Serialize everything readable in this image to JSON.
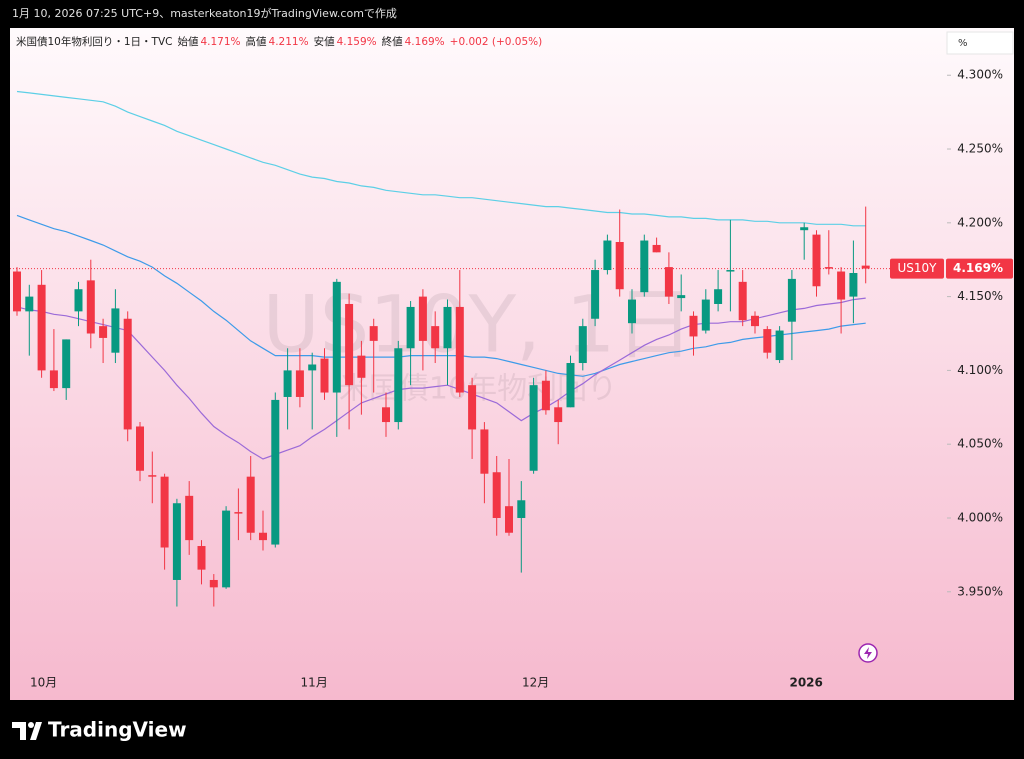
{
  "chart_data": {
    "type": "candlestick",
    "caption": "1月 10, 2026 07:25 UTC+9、masterkeaton19がTradingView.comで作成",
    "symbol_title": "米国債10年物利回り・1日・TVC",
    "ohlc_legend": [
      {
        "label": "始値",
        "text": "4.171%"
      },
      {
        "label": "高値",
        "text": "4.211%"
      },
      {
        "label": "安値",
        "text": "4.159%"
      },
      {
        "label": "終値",
        "text": "4.169%"
      }
    ],
    "change_text": "+0.002 (+0.05%)",
    "watermark": [
      "US10Y, 1日",
      "米国債10年物利回り"
    ],
    "axis_unit": "%",
    "brand": "TradingView",
    "categories": [
      null,
      null,
      "10月",
      null,
      null,
      null,
      null,
      null,
      null,
      null,
      null,
      null,
      null,
      null,
      null,
      null,
      null,
      null,
      null,
      null,
      null,
      null,
      null,
      null,
      "11月",
      null,
      null,
      null,
      null,
      null,
      null,
      null,
      null,
      null,
      null,
      null,
      null,
      null,
      null,
      null,
      null,
      null,
      "12月",
      null,
      null,
      null,
      null,
      null,
      null,
      null,
      null,
      null,
      null,
      null,
      null,
      null,
      null,
      null,
      null,
      null,
      null,
      null,
      null,
      null,
      "2026",
      null,
      null,
      null,
      null,
      null
    ],
    "open": [
      4.167,
      4.14,
      4.158,
      4.1,
      4.088,
      4.14,
      4.161,
      4.13,
      4.112,
      4.135,
      4.062,
      4.029,
      4.028,
      3.958,
      4.015,
      3.981,
      3.958,
      3.953,
      4.004,
      4.028,
      3.99,
      3.982,
      4.082,
      4.1,
      4.1,
      4.108,
      4.085,
      4.145,
      4.11,
      4.13,
      4.075,
      4.065,
      4.115,
      4.15,
      4.13,
      4.115,
      4.143,
      4.09,
      4.06,
      4.031,
      4.008,
      4.0,
      4.032,
      4.093,
      4.075,
      4.075,
      4.105,
      4.135,
      4.168,
      4.187,
      4.132,
      4.153,
      4.185,
      4.17,
      4.149,
      4.137,
      4.127,
      4.145,
      4.167,
      4.16,
      4.137,
      4.128,
      4.107,
      4.133,
      4.195,
      4.192,
      4.17,
      4.167,
      4.15,
      4.171
    ],
    "high": [
      4.17,
      4.158,
      4.168,
      4.128,
      4.121,
      4.16,
      4.175,
      4.135,
      4.155,
      4.14,
      4.065,
      4.045,
      4.03,
      4.013,
      4.025,
      3.985,
      3.962,
      4.008,
      4.02,
      4.042,
      4.005,
      4.085,
      4.115,
      4.115,
      4.112,
      4.115,
      4.162,
      4.152,
      4.12,
      4.135,
      4.085,
      4.12,
      4.147,
      4.155,
      4.14,
      4.148,
      4.168,
      4.095,
      4.065,
      4.042,
      4.04,
      4.025,
      4.095,
      4.1,
      4.08,
      4.11,
      4.135,
      4.175,
      4.192,
      4.209,
      4.155,
      4.192,
      4.19,
      4.18,
      4.165,
      4.14,
      4.155,
      4.168,
      4.202,
      4.168,
      4.14,
      4.13,
      4.13,
      4.168,
      4.2,
      4.195,
      4.195,
      4.17,
      4.188,
      4.211
    ],
    "low": [
      4.137,
      4.11,
      4.095,
      4.086,
      4.08,
      4.13,
      4.115,
      4.105,
      4.105,
      4.052,
      4.025,
      4.01,
      3.965,
      3.94,
      3.975,
      3.955,
      3.94,
      3.952,
      3.985,
      3.985,
      3.978,
      3.98,
      4.06,
      4.075,
      4.06,
      4.08,
      4.055,
      4.06,
      4.07,
      4.085,
      4.055,
      4.06,
      4.09,
      4.1,
      4.105,
      4.09,
      4.082,
      4.04,
      4.01,
      3.988,
      3.988,
      3.963,
      4.03,
      4.07,
      4.05,
      4.075,
      4.1,
      4.13,
      4.165,
      4.15,
      4.125,
      4.15,
      4.18,
      4.145,
      4.14,
      4.11,
      4.125,
      4.14,
      4.14,
      4.13,
      4.125,
      4.108,
      4.105,
      4.107,
      4.175,
      4.15,
      4.165,
      4.125,
      4.132,
      4.159
    ],
    "close": [
      4.14,
      4.15,
      4.1,
      4.088,
      4.121,
      4.155,
      4.125,
      4.122,
      4.142,
      4.06,
      4.032,
      4.028,
      3.98,
      4.01,
      3.985,
      3.965,
      3.953,
      4.005,
      4.003,
      3.99,
      3.985,
      4.08,
      4.1,
      4.082,
      4.104,
      4.085,
      4.16,
      4.09,
      4.095,
      4.12,
      4.065,
      4.115,
      4.143,
      4.12,
      4.115,
      4.143,
      4.085,
      4.06,
      4.03,
      4.0,
      3.99,
      4.012,
      4.09,
      4.073,
      4.065,
      4.105,
      4.13,
      4.168,
      4.188,
      4.155,
      4.148,
      4.188,
      4.18,
      4.15,
      4.151,
      4.123,
      4.148,
      4.155,
      4.168,
      4.134,
      4.13,
      4.112,
      4.127,
      4.162,
      4.197,
      4.157,
      4.169,
      4.148,
      4.166,
      4.169
    ],
    "up_color": "#089981",
    "down_color": "#f23645",
    "series": [
      {
        "color": "#5ccfe6",
        "values": [
          4.289,
          4.288,
          4.287,
          4.286,
          4.285,
          4.284,
          4.283,
          4.282,
          4.279,
          4.275,
          4.272,
          4.269,
          4.266,
          4.262,
          4.259,
          4.256,
          4.253,
          4.25,
          4.247,
          4.244,
          4.241,
          4.239,
          4.236,
          4.233,
          4.231,
          4.23,
          4.228,
          4.227,
          4.225,
          4.224,
          4.222,
          4.221,
          4.22,
          4.219,
          4.219,
          4.218,
          4.217,
          4.217,
          4.216,
          4.215,
          4.214,
          4.213,
          4.212,
          4.211,
          4.211,
          4.21,
          4.209,
          4.208,
          4.207,
          4.207,
          4.206,
          4.206,
          4.205,
          4.204,
          4.204,
          4.203,
          4.203,
          4.202,
          4.202,
          4.202,
          4.201,
          4.201,
          4.2,
          4.2,
          4.2,
          4.199,
          4.199,
          4.199,
          4.198,
          4.198
        ]
      },
      {
        "color": "#3d9be9",
        "values": [
          4.205,
          4.202,
          4.199,
          4.196,
          4.194,
          4.191,
          4.188,
          4.185,
          4.181,
          4.177,
          4.174,
          4.17,
          4.164,
          4.159,
          4.153,
          4.147,
          4.14,
          4.134,
          4.127,
          4.12,
          4.115,
          4.11,
          4.11,
          4.11,
          4.11,
          4.109,
          4.109,
          4.109,
          4.109,
          4.109,
          4.109,
          4.109,
          4.11,
          4.11,
          4.11,
          4.11,
          4.11,
          4.109,
          4.109,
          4.108,
          4.106,
          4.104,
          4.102,
          4.1,
          4.098,
          4.097,
          4.096,
          4.098,
          4.101,
          4.104,
          4.106,
          4.108,
          4.11,
          4.112,
          4.113,
          4.115,
          4.116,
          4.118,
          4.119,
          4.121,
          4.122,
          4.123,
          4.124,
          4.125,
          4.126,
          4.127,
          4.128,
          4.13,
          4.131,
          4.132
        ]
      },
      {
        "color": "#9b6ad8",
        "values": [
          4.143,
          4.141,
          4.14,
          4.138,
          4.137,
          4.135,
          4.133,
          4.131,
          4.129,
          4.127,
          4.118,
          4.109,
          4.1,
          4.09,
          4.081,
          4.071,
          4.062,
          4.056,
          4.051,
          4.045,
          4.04,
          4.043,
          4.046,
          4.049,
          4.055,
          4.06,
          4.066,
          4.072,
          4.078,
          4.081,
          4.084,
          4.087,
          4.088,
          4.088,
          4.089,
          4.09,
          4.087,
          4.084,
          4.081,
          4.078,
          4.072,
          4.066,
          4.071,
          4.075,
          4.08,
          4.086,
          4.091,
          4.097,
          4.102,
          4.107,
          4.112,
          4.117,
          4.121,
          4.124,
          4.128,
          4.131,
          4.132,
          4.132,
          4.133,
          4.133,
          4.135,
          4.137,
          4.139,
          4.141,
          4.142,
          4.144,
          4.145,
          4.146,
          4.148,
          4.149
        ]
      }
    ],
    "last_price": {
      "symbol": "US10Y",
      "value": 4.169,
      "label": "4.169%",
      "color": "#f23645"
    },
    "ylim": [
      3.897,
      4.332
    ],
    "yticks": [
      {
        "value": 3.95,
        "label": "3.950%"
      },
      {
        "value": 4.0,
        "label": "4.000%"
      },
      {
        "value": 4.05,
        "label": "4.050%"
      },
      {
        "value": 4.1,
        "label": "4.100%"
      },
      {
        "value": 4.15,
        "label": "4.150%"
      },
      {
        "value": 4.2,
        "label": "4.200%"
      },
      {
        "value": 4.25,
        "label": "4.250%"
      },
      {
        "value": 4.3,
        "label": "4.300%"
      }
    ],
    "grid": false
  }
}
